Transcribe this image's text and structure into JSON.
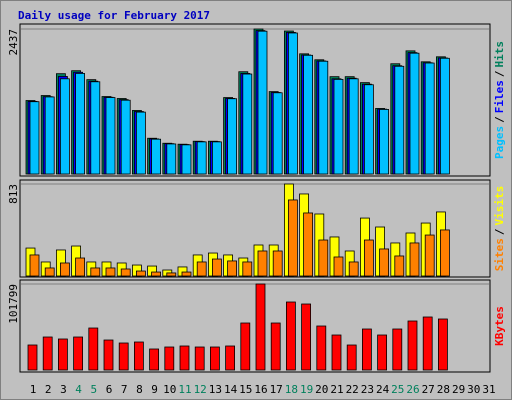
{
  "chart_data": {
    "type": "bar",
    "title": "Daily usage for February 2017",
    "title_color": "#0000c0",
    "legend_separator": "/",
    "categories": [
      "1",
      "2",
      "3",
      "4",
      "5",
      "6",
      "7",
      "8",
      "9",
      "10",
      "11",
      "12",
      "13",
      "14",
      "15",
      "16",
      "17",
      "18",
      "19",
      "20",
      "21",
      "22",
      "23",
      "24",
      "25",
      "26",
      "27",
      "28",
      "29",
      "30",
      "31"
    ],
    "category_colors": [
      "#000",
      "#000",
      "#000",
      "#00805c",
      "#00805c",
      "#000",
      "#000",
      "#000",
      "#000",
      "#000",
      "#00805c",
      "#00805c",
      "#000",
      "#000",
      "#000",
      "#000",
      "#000",
      "#00805c",
      "#00805c",
      "#000",
      "#000",
      "#000",
      "#000",
      "#000",
      "#00805c",
      "#00805c",
      "#000",
      "#000",
      "#000",
      "#000",
      "#000"
    ],
    "panels": [
      {
        "ylim": [
          0,
          2437
        ],
        "yticks": [
          2437
        ],
        "series": [
          {
            "name": "Hits",
            "color": "#00805c",
            "values": [
              1235,
              1319,
              1686,
              1736,
              1586,
              1302,
              1269,
              1068,
              601,
              517,
              501,
              551,
              551,
              1285,
              1719,
              2437,
              1385,
              2403,
              2020,
              1920,
              1636,
              1636,
              1536,
              1102,
              1853,
              2070,
              1886,
              1970
            ]
          },
          {
            "name": "Files",
            "color": "#0000ff",
            "values": [
              1220,
              1300,
              1640,
              1710,
              1560,
              1290,
              1250,
              1050,
              590,
              510,
              495,
              545,
              545,
              1270,
              1690,
              2410,
              1370,
              2380,
              2000,
              1900,
              1600,
              1610,
              1510,
              1090,
              1820,
              2040,
              1870,
              1950
            ]
          },
          {
            "name": "Pages",
            "color": "#00c0ff",
            "values": [
              1215,
              1295,
              1600,
              1690,
              1550,
              1285,
              1240,
              1040,
              585,
              505,
              490,
              540,
              540,
              1265,
              1680,
              2400,
              1365,
              2370,
              1995,
              1895,
              1590,
              1600,
              1500,
              1085,
              1810,
              2030,
              1865,
              1945
            ]
          }
        ]
      },
      {
        "ylim": [
          0,
          813
        ],
        "yticks": [
          813
        ],
        "series": [
          {
            "name": "Visits",
            "color": "#ffff00",
            "values": [
              247,
              124,
              230,
              265,
              124,
              124,
              115,
              97,
              88,
              53,
              80,
              186,
              203,
              186,
              159,
              274,
              274,
              813,
              725,
              548,
              345,
              221,
              512,
              433,
              292,
              380,
              468,
              566
            ]
          },
          {
            "name": "Sites",
            "color": "#ff8000",
            "values": [
              186,
              71,
              115,
              159,
              71,
              71,
              62,
              44,
              35,
              27,
              35,
              124,
              150,
              133,
              124,
              221,
              221,
              672,
              557,
              318,
              168,
              124,
              318,
              239,
              177,
              292,
              362,
              407
            ]
          }
        ]
      },
      {
        "ylim": [
          0,
          101799
        ],
        "yticks": [
          101799
        ],
        "series": [
          {
            "name": "KBytes",
            "color": "#ff0000",
            "values": [
              29600,
              39060,
              36700,
              39060,
              49700,
              35500,
              31960,
              33140,
              24860,
              27220,
              28410,
              27220,
              27220,
              28410,
              55630,
              101799,
              55630,
              80490,
              78120,
              52080,
              41430,
              29590,
              48530,
              41430,
              48530,
              58000,
              62740,
              60370
            ]
          }
        ]
      }
    ]
  }
}
